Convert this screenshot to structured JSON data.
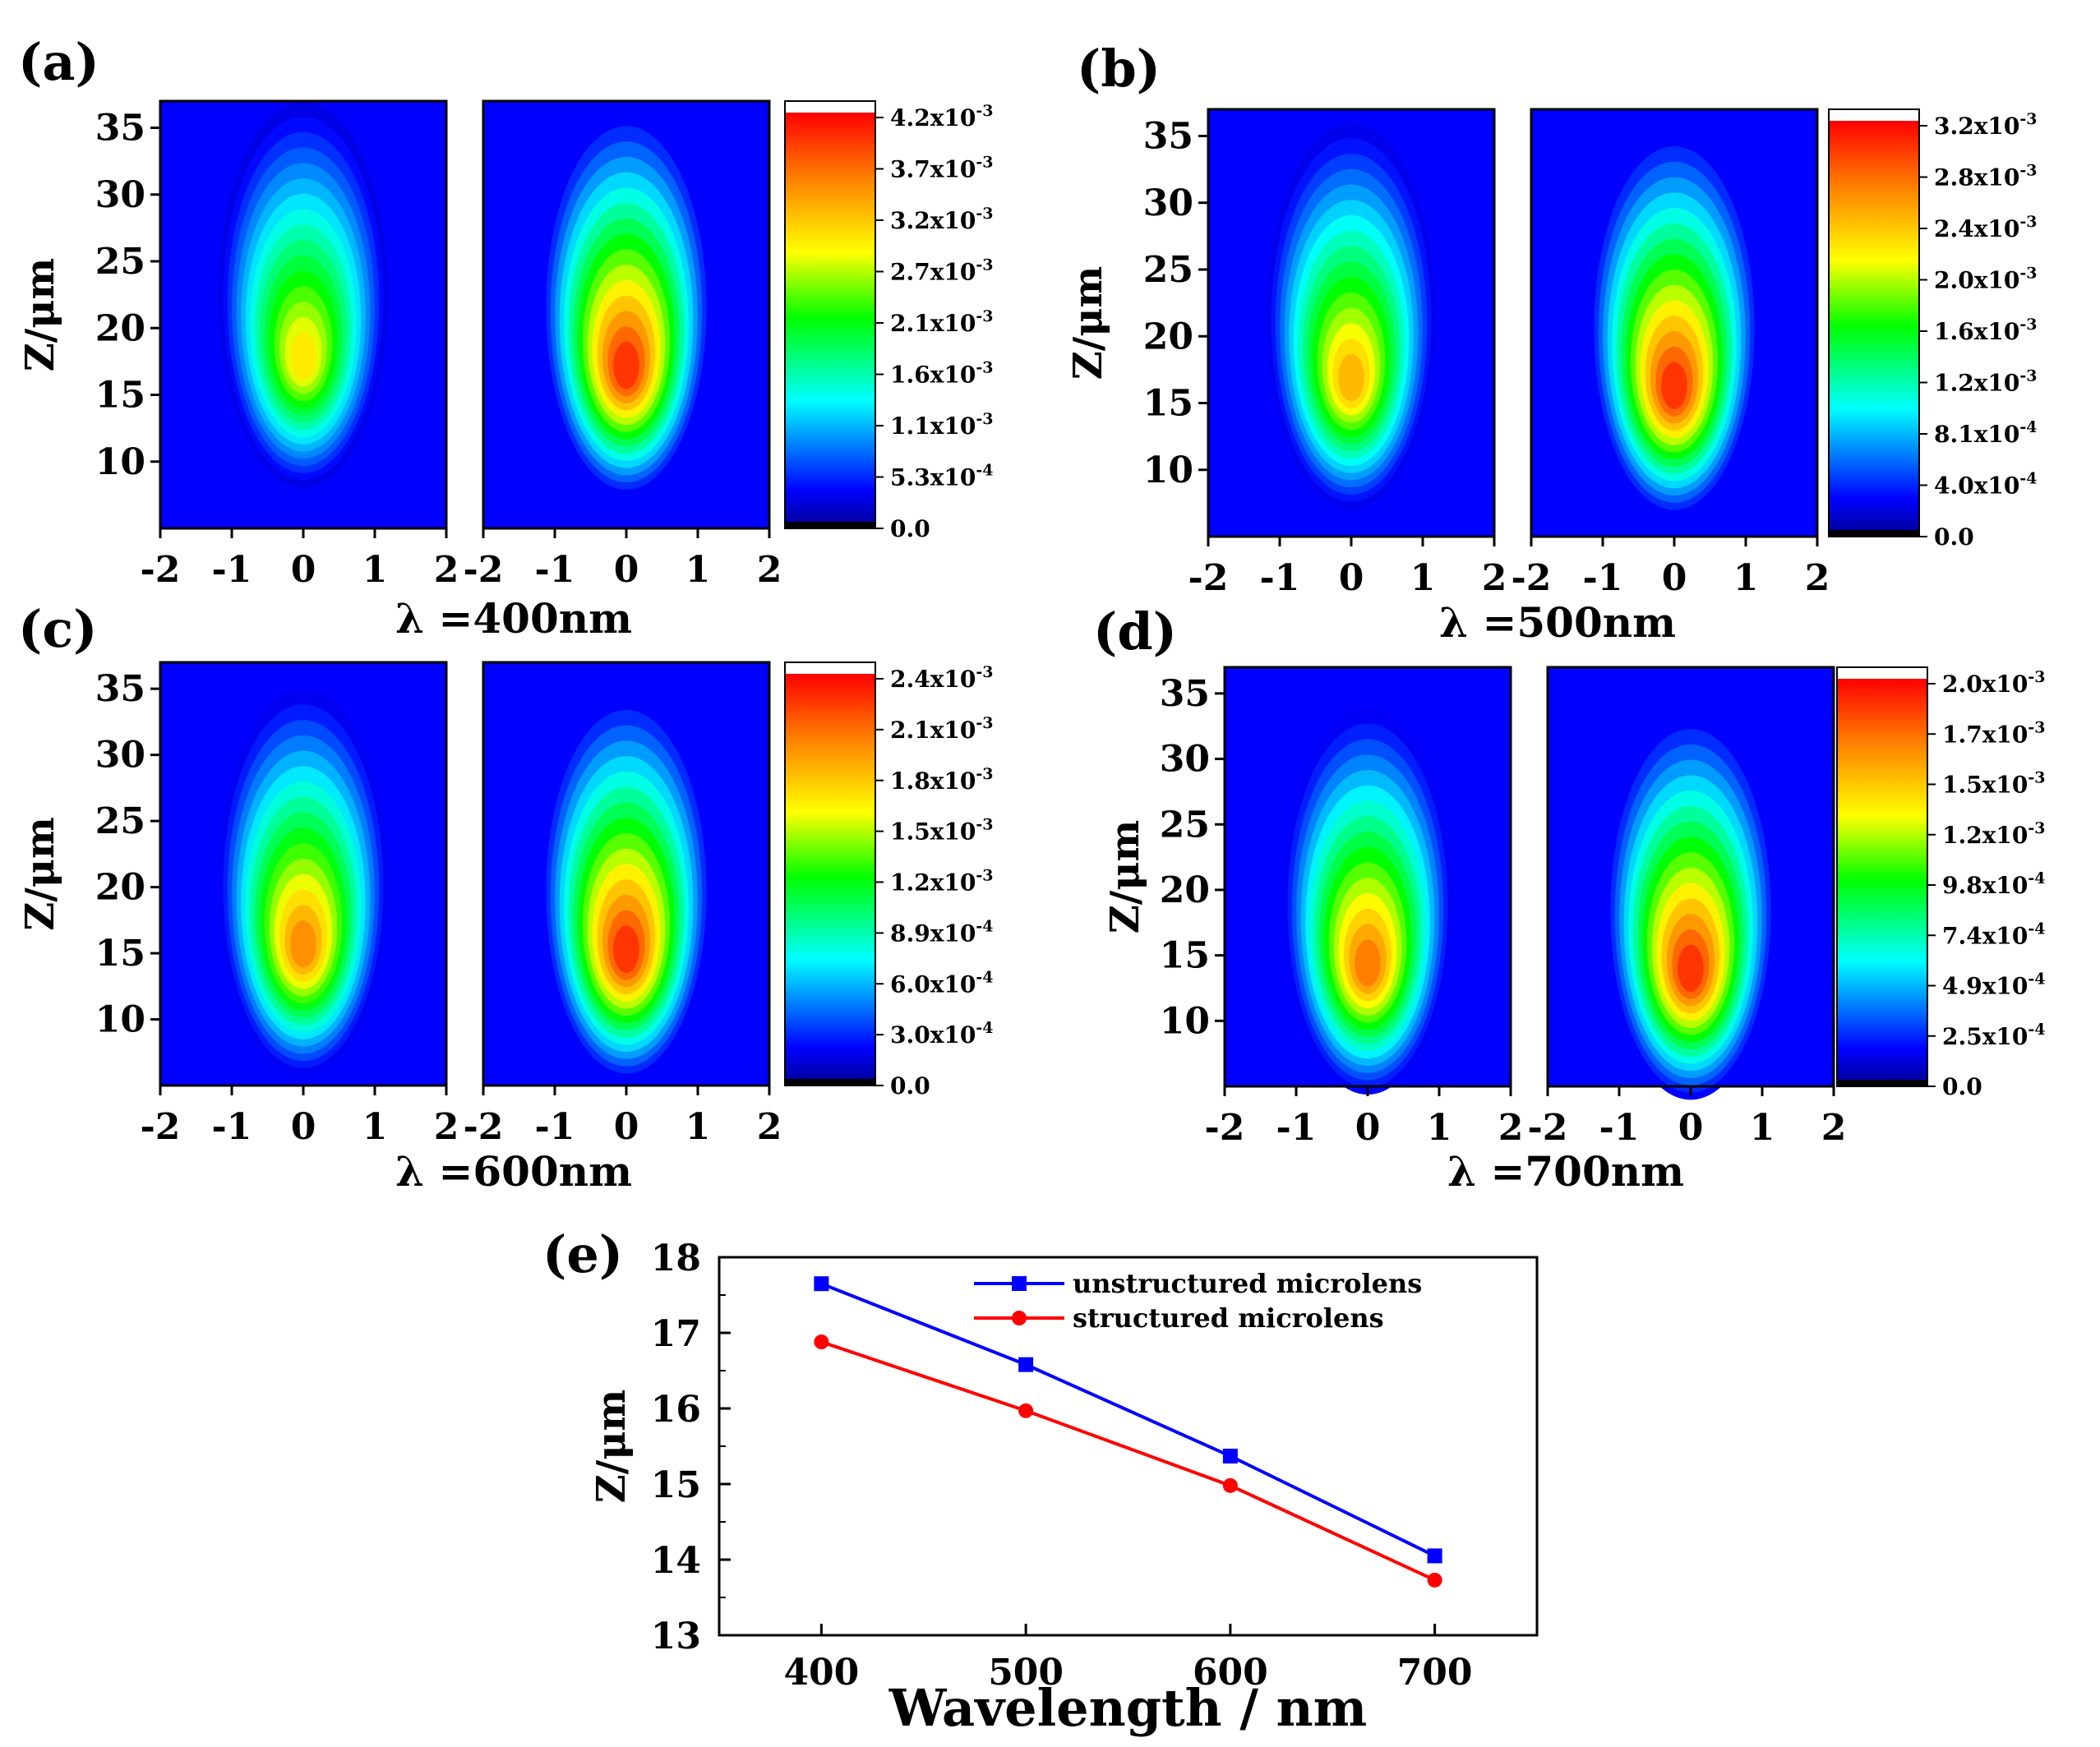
{
  "chart_data": [
    {
      "type": "heatmap",
      "panel_label": "(a)",
      "caption_prefix": "λ =",
      "caption_value": "400nm",
      "wavelength_nm": 400,
      "ylabel": "Z/μm",
      "x_ticks": [
        "-2",
        "-1",
        "0",
        "1",
        "2"
      ],
      "y_ticks": [
        "10",
        "15",
        "20",
        "25",
        "30",
        "35"
      ],
      "xlim": [
        -2,
        2
      ],
      "ylim": [
        5,
        37
      ],
      "colorbar_ticks": [
        "4.2x10-3",
        "3.7x10-3",
        "3.2x10-3",
        "2.7x10-3",
        "2.1x10-3",
        "1.6x10-3",
        "1.1x10-3",
        "5.3x10-4",
        "0.0"
      ],
      "colorbar_max": 0.0042,
      "maps": [
        {
          "name": "unstructured",
          "peak_z": 17.6,
          "peak_value": 0.0031
        },
        {
          "name": "structured",
          "peak_z": 16.9,
          "peak_value": 0.0042
        }
      ]
    },
    {
      "type": "heatmap",
      "panel_label": "(b)",
      "caption_prefix": "λ =",
      "caption_value": "500nm",
      "wavelength_nm": 500,
      "ylabel": "Z/μm",
      "x_ticks": [
        "-2",
        "-1",
        "0",
        "1",
        "2"
      ],
      "y_ticks": [
        "10",
        "15",
        "20",
        "25",
        "30",
        "35"
      ],
      "xlim": [
        -2,
        2
      ],
      "ylim": [
        5,
        37
      ],
      "colorbar_ticks": [
        "3.2x10-3",
        "2.8x10-3",
        "2.4x10-3",
        "2.0x10-3",
        "1.6x10-3",
        "1.2x10-3",
        "8.1x10-4",
        "4.0x10-4",
        "0.0"
      ],
      "colorbar_max": 0.0032,
      "maps": [
        {
          "name": "unstructured",
          "peak_z": 16.6,
          "peak_value": 0.0026
        },
        {
          "name": "structured",
          "peak_z": 16.0,
          "peak_value": 0.0032
        }
      ]
    },
    {
      "type": "heatmap",
      "panel_label": "(c)",
      "caption_prefix": "λ =",
      "caption_value": "600nm",
      "wavelength_nm": 600,
      "ylabel": "Z/μm",
      "x_ticks": [
        "-2",
        "-1",
        "0",
        "1",
        "2"
      ],
      "y_ticks": [
        "10",
        "15",
        "20",
        "25",
        "30",
        "35"
      ],
      "xlim": [
        -2,
        2
      ],
      "ylim": [
        5,
        37
      ],
      "colorbar_ticks": [
        "2.4x10-3",
        "2.1x10-3",
        "1.8x10-3",
        "1.5x10-3",
        "1.2x10-3",
        "8.9x10-4",
        "6.0x10-4",
        "3.0x10-4",
        "0.0"
      ],
      "colorbar_max": 0.0024,
      "maps": [
        {
          "name": "unstructured",
          "peak_z": 15.4,
          "peak_value": 0.0021
        },
        {
          "name": "structured",
          "peak_z": 15.0,
          "peak_value": 0.0024
        }
      ]
    },
    {
      "type": "heatmap",
      "panel_label": "(d)",
      "caption_prefix": "λ =",
      "caption_value": "700nm",
      "wavelength_nm": 700,
      "ylabel": "Z/μm",
      "x_ticks": [
        "-2",
        "-1",
        "0",
        "1",
        "2"
      ],
      "y_ticks": [
        "10",
        "15",
        "20",
        "25",
        "30",
        "35"
      ],
      "xlim": [
        -2,
        2
      ],
      "ylim": [
        5,
        37
      ],
      "colorbar_ticks": [
        "2.0x10-3",
        "1.7x10-3",
        "1.5x10-3",
        "1.2x10-3",
        "9.8x10-4",
        "7.4x10-4",
        "4.9x10-4",
        "2.5x10-4",
        "0.0"
      ],
      "colorbar_max": 0.002,
      "maps": [
        {
          "name": "unstructured",
          "peak_z": 14.1,
          "peak_value": 0.0018
        },
        {
          "name": "structured",
          "peak_z": 13.7,
          "peak_value": 0.002
        }
      ]
    },
    {
      "type": "line",
      "panel_label": "(e)",
      "xlabel": "Wavelength / nm",
      "ylabel": "Z/μm",
      "x": [
        400,
        500,
        600,
        700
      ],
      "xlim": [
        350,
        750
      ],
      "ylim": [
        13,
        18
      ],
      "x_ticks": [
        "400",
        "500",
        "600",
        "700"
      ],
      "y_ticks": [
        "13",
        "14",
        "15",
        "16",
        "17",
        "18"
      ],
      "legend_position": "top-right",
      "series": [
        {
          "name": "unstructured microlens",
          "color": "#0000ff",
          "marker": "square",
          "values": [
            17.65,
            16.58,
            15.37,
            14.05
          ]
        },
        {
          "name": "structured microlens",
          "color": "#ff0000",
          "marker": "circle",
          "values": [
            16.88,
            15.97,
            14.98,
            13.73
          ]
        }
      ]
    }
  ]
}
